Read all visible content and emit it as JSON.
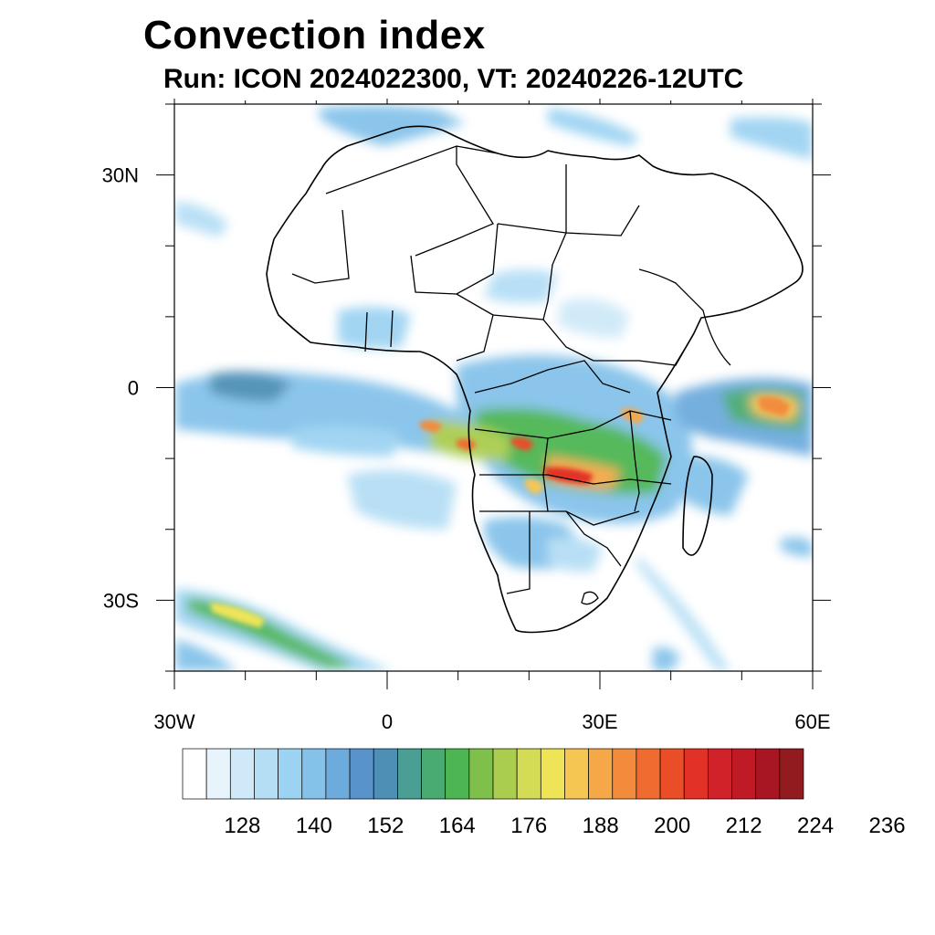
{
  "title": "Convection index",
  "subtitle": "Run: ICON 2024022300,  VT: 20240226-12UTC",
  "map": {
    "lon_range": [
      -30,
      60
    ],
    "lat_range": [
      -40,
      40
    ],
    "x_ticks": [
      {
        "value": -30,
        "label": "30W"
      },
      {
        "value": 0,
        "label": "0"
      },
      {
        "value": 30,
        "label": "30E"
      },
      {
        "value": 60,
        "label": "60E"
      }
    ],
    "y_ticks": [
      {
        "value": 30,
        "label": "30N"
      },
      {
        "value": 0,
        "label": "0"
      },
      {
        "value": -30,
        "label": "30S"
      }
    ]
  },
  "colorbar": {
    "colors": [
      "#ffffff",
      "#e8f4fc",
      "#cfe9f8",
      "#b5def5",
      "#9dd3f2",
      "#85c2ea",
      "#6eabdd",
      "#5893cc",
      "#4e8fb5",
      "#4a9e93",
      "#4aab72",
      "#4db653",
      "#7fc04d",
      "#aacd4f",
      "#d4dc55",
      "#efe458",
      "#f6c653",
      "#f6a848",
      "#f28b3c",
      "#ef6b30",
      "#e94e29",
      "#e23227",
      "#d22229",
      "#bf1a26",
      "#a81523",
      "#921b20"
    ],
    "labels": [
      "128",
      "140",
      "152",
      "164",
      "176",
      "188",
      "200",
      "212",
      "224",
      "236"
    ]
  }
}
